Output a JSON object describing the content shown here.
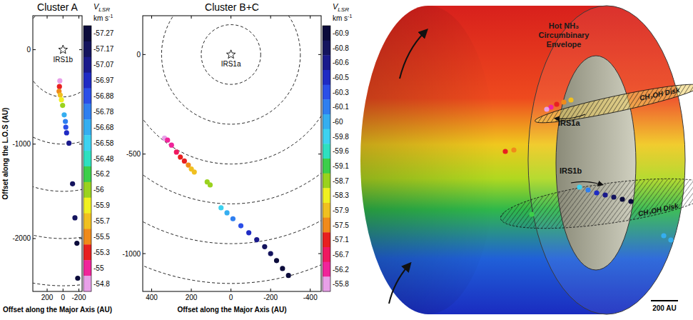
{
  "chart_data": [
    {
      "type": "scatter",
      "title": "Cluster A",
      "xlabel": "Offset along the Major Axis (AU)",
      "ylabel": "Offset along the L.O.S (AU)",
      "x": [
        40,
        45,
        50,
        35,
        20,
        5,
        -15,
        -30,
        -35,
        -45,
        -75,
        -120,
        -150,
        -175,
        -185
      ],
      "y": [
        -330,
        -390,
        -440,
        -480,
        -530,
        -590,
        -690,
        -760,
        -820,
        -880,
        -990,
        -1420,
        -1780,
        -2050,
        -2420
      ],
      "vlsr": [
        -54.8,
        -55.3,
        -55.5,
        -55.7,
        -55.9,
        -56,
        -56.68,
        -56.78,
        -56.88,
        -56.97,
        -57.07,
        -57.17,
        -57.17,
        -57.27,
        -57.27
      ],
      "xlim": [
        380,
        -240
      ],
      "xticks": [
        200,
        0,
        -200
      ],
      "ylim": [
        -2560,
        360
      ],
      "yticks": [
        0,
        -1000,
        -2000
      ],
      "source": {
        "label": "IRS1b",
        "x": 0,
        "y": 0
      },
      "rings": [
        500,
        1000,
        1500,
        2000,
        2500
      ],
      "colorbar": {
        "title": "V",
        "title_sub": "LSR",
        "unit": "km s",
        "unit_sup": "-1",
        "values": [
          -57.27,
          -57.17,
          -57.07,
          -56.97,
          -56.88,
          -56.78,
          -56.68,
          -56.58,
          -56.48,
          -56.2,
          -56,
          -55.9,
          -55.7,
          -55.5,
          -55.3,
          -55,
          -54.8
        ],
        "colors": [
          "#0b0b3b",
          "#14145e",
          "#1a1a8c",
          "#1f2bc4",
          "#2b4fe8",
          "#2f7ff0",
          "#35aef0",
          "#3dd2f0",
          "#2ee0c0",
          "#3ccf4a",
          "#9ad21e",
          "#f0f020",
          "#f0c020",
          "#f08a1a",
          "#e82020",
          "#f0249a",
          "#e8a0e8"
        ]
      }
    },
    {
      "type": "scatter",
      "title": "Cluster B+C",
      "xlabel": "Offset along the Major Axis (AU)",
      "x": [
        335,
        320,
        300,
        275,
        255,
        235,
        215,
        200,
        185,
        120,
        105,
        50,
        20,
        -10,
        -50,
        -90,
        -130,
        -170,
        -200,
        -230,
        -260,
        -290
      ],
      "y": [
        -420,
        -430,
        -455,
        -490,
        -515,
        -535,
        -555,
        -575,
        -590,
        -640,
        -655,
        -770,
        -795,
        -825,
        -860,
        -895,
        -930,
        -965,
        -1000,
        -1035,
        -1075,
        -1110
      ],
      "vlsr": [
        -55.8,
        -56.2,
        -56.2,
        -56.7,
        -57.1,
        -57.1,
        -57.5,
        -57.9,
        -57.9,
        -58.7,
        -58.7,
        -59.8,
        -60,
        -60.1,
        -60.3,
        -60.5,
        -60.6,
        -60.8,
        -60.8,
        -60.9,
        -60.9,
        -60.9
      ],
      "xlim": [
        445,
        -455
      ],
      "xticks": [
        400,
        200,
        0,
        -200,
        -400
      ],
      "ylim": [
        -1190,
        195
      ],
      "yticks": [
        0,
        -500,
        -1000
      ],
      "source": {
        "label": "IRS1a",
        "x": 0,
        "y": 0
      },
      "rings": [
        150,
        350,
        550,
        750,
        950,
        1150,
        1350
      ],
      "colorbar": {
        "title": "V",
        "title_sub": "LSR",
        "unit": "km s",
        "unit_sup": "-1",
        "values": [
          -60.9,
          -60.8,
          -60.6,
          -60.5,
          -60.3,
          -60.1,
          -60,
          -59.8,
          -59.6,
          -59.1,
          -58.7,
          -58.3,
          -57.9,
          -57.5,
          -57.1,
          -56.7,
          -56.2,
          -55.8
        ],
        "colors": [
          "#0b0b3b",
          "#14145e",
          "#1a1a8c",
          "#1f2bc4",
          "#2b4fe8",
          "#2f7ff0",
          "#35aef0",
          "#3dd2f0",
          "#2ee0c0",
          "#3ccf4a",
          "#9ad21e",
          "#f0f020",
          "#f0c020",
          "#f08a1a",
          "#e82020",
          "#f01860",
          "#f0249a",
          "#e8a0e8"
        ]
      }
    }
  ],
  "illustration": {
    "envelope_label": "Hot NH₃ Circumbinary Envelope",
    "disk_labels": [
      "CH₃OH Disk",
      "CH₃OH Disk"
    ],
    "sources": [
      "IRS1a",
      "IRS1b"
    ],
    "scale_label": "200 AU"
  }
}
